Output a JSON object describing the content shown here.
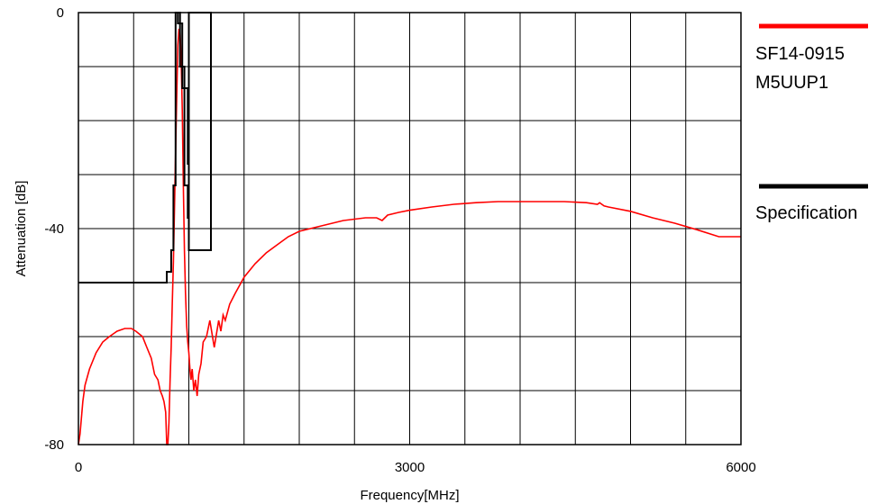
{
  "chart_data": {
    "type": "line",
    "title": "",
    "xlabel": "Frequency[MHz]",
    "ylabel": "Attenuation  [dB]",
    "xlim": [
      0,
      6000
    ],
    "ylim": [
      -80,
      0
    ],
    "x_ticks": [
      0,
      3000,
      6000
    ],
    "x_tick_labels": [
      "0",
      "3000",
      "6000"
    ],
    "y_ticks": [
      0,
      -40,
      -80
    ],
    "y_tick_labels": [
      "0",
      "-40",
      "-80"
    ],
    "x_grid_step": 500,
    "y_grid_step": 10,
    "grid": true,
    "legend_position": "right",
    "series": [
      {
        "name": "SF14-0915 M5UUP1",
        "legend_lines": [
          "SF14-0915",
          "M5UUP1"
        ],
        "color": "#ff0000",
        "x": [
          0,
          15,
          40,
          60,
          100,
          160,
          220,
          280,
          350,
          420,
          480,
          520,
          580,
          620,
          660,
          690,
          720,
          740,
          760,
          775,
          790,
          800,
          810,
          820,
          830,
          840,
          850,
          860,
          870,
          880,
          890,
          900,
          910,
          920,
          930,
          940,
          950,
          960,
          970,
          980,
          990,
          1000,
          1010,
          1020,
          1030,
          1045,
          1060,
          1075,
          1090,
          1110,
          1130,
          1160,
          1190,
          1230,
          1270,
          1290,
          1310,
          1330,
          1370,
          1420,
          1500,
          1600,
          1700,
          1800,
          1900,
          2000,
          2200,
          2400,
          2600,
          2700,
          2750,
          2800,
          2900,
          3000,
          3200,
          3400,
          3600,
          3800,
          4000,
          4200,
          4400,
          4600,
          4700,
          4720,
          4760,
          4800,
          5000,
          5200,
          5400,
          5600,
          5800,
          6000
        ],
        "y": [
          -80,
          -78,
          -72,
          -69,
          -66,
          -63,
          -61,
          -60,
          -59,
          -58.5,
          -58.5,
          -59,
          -60,
          -62,
          -64,
          -67,
          -68,
          -70,
          -71,
          -72,
          -74,
          -80,
          -80,
          -76,
          -68,
          -62,
          -54,
          -46,
          -36,
          -26,
          -16,
          -6,
          -3,
          -3.5,
          -8,
          -18,
          -32,
          -44,
          -52,
          -58,
          -61,
          -63,
          -66,
          -68,
          -66,
          -70,
          -68,
          -71,
          -67,
          -65,
          -61,
          -60,
          -57,
          -62,
          -57,
          -59,
          -56,
          -57,
          -54,
          -52,
          -49,
          -46.5,
          -44.5,
          -43,
          -41.5,
          -40.5,
          -39.5,
          -38.5,
          -38,
          -38,
          -38.5,
          -37.5,
          -37,
          -36.6,
          -36,
          -35.5,
          -35.2,
          -35,
          -35,
          -35,
          -35,
          -35.2,
          -35.5,
          -35.2,
          -35.8,
          -36,
          -36.8,
          -38,
          -39,
          -40.2,
          -41.5,
          -41.5
        ]
      },
      {
        "name": "Specification",
        "legend_lines": [
          "Specification"
        ],
        "color": "#000000",
        "x": [
          0,
          800,
          800,
          840,
          840,
          860,
          860,
          880,
          880,
          920,
          920,
          940,
          940,
          960,
          960,
          990,
          990,
          1000,
          1000,
          1200,
          1200,
          1000,
          1000,
          990,
          990,
          960,
          960,
          940,
          940,
          920,
          920,
          900,
          900,
          880,
          880
        ],
        "y": [
          -50,
          -50,
          -48,
          -48,
          -44,
          -44,
          -32,
          -32,
          0,
          0,
          -2,
          -2,
          -10,
          -10,
          -14,
          -14,
          -28,
          -28,
          -44,
          -44,
          0,
          0,
          -38,
          -38,
          -32,
          -32,
          -14,
          -14,
          -10,
          -10,
          -2,
          -2,
          0,
          0,
          0
        ]
      }
    ]
  }
}
